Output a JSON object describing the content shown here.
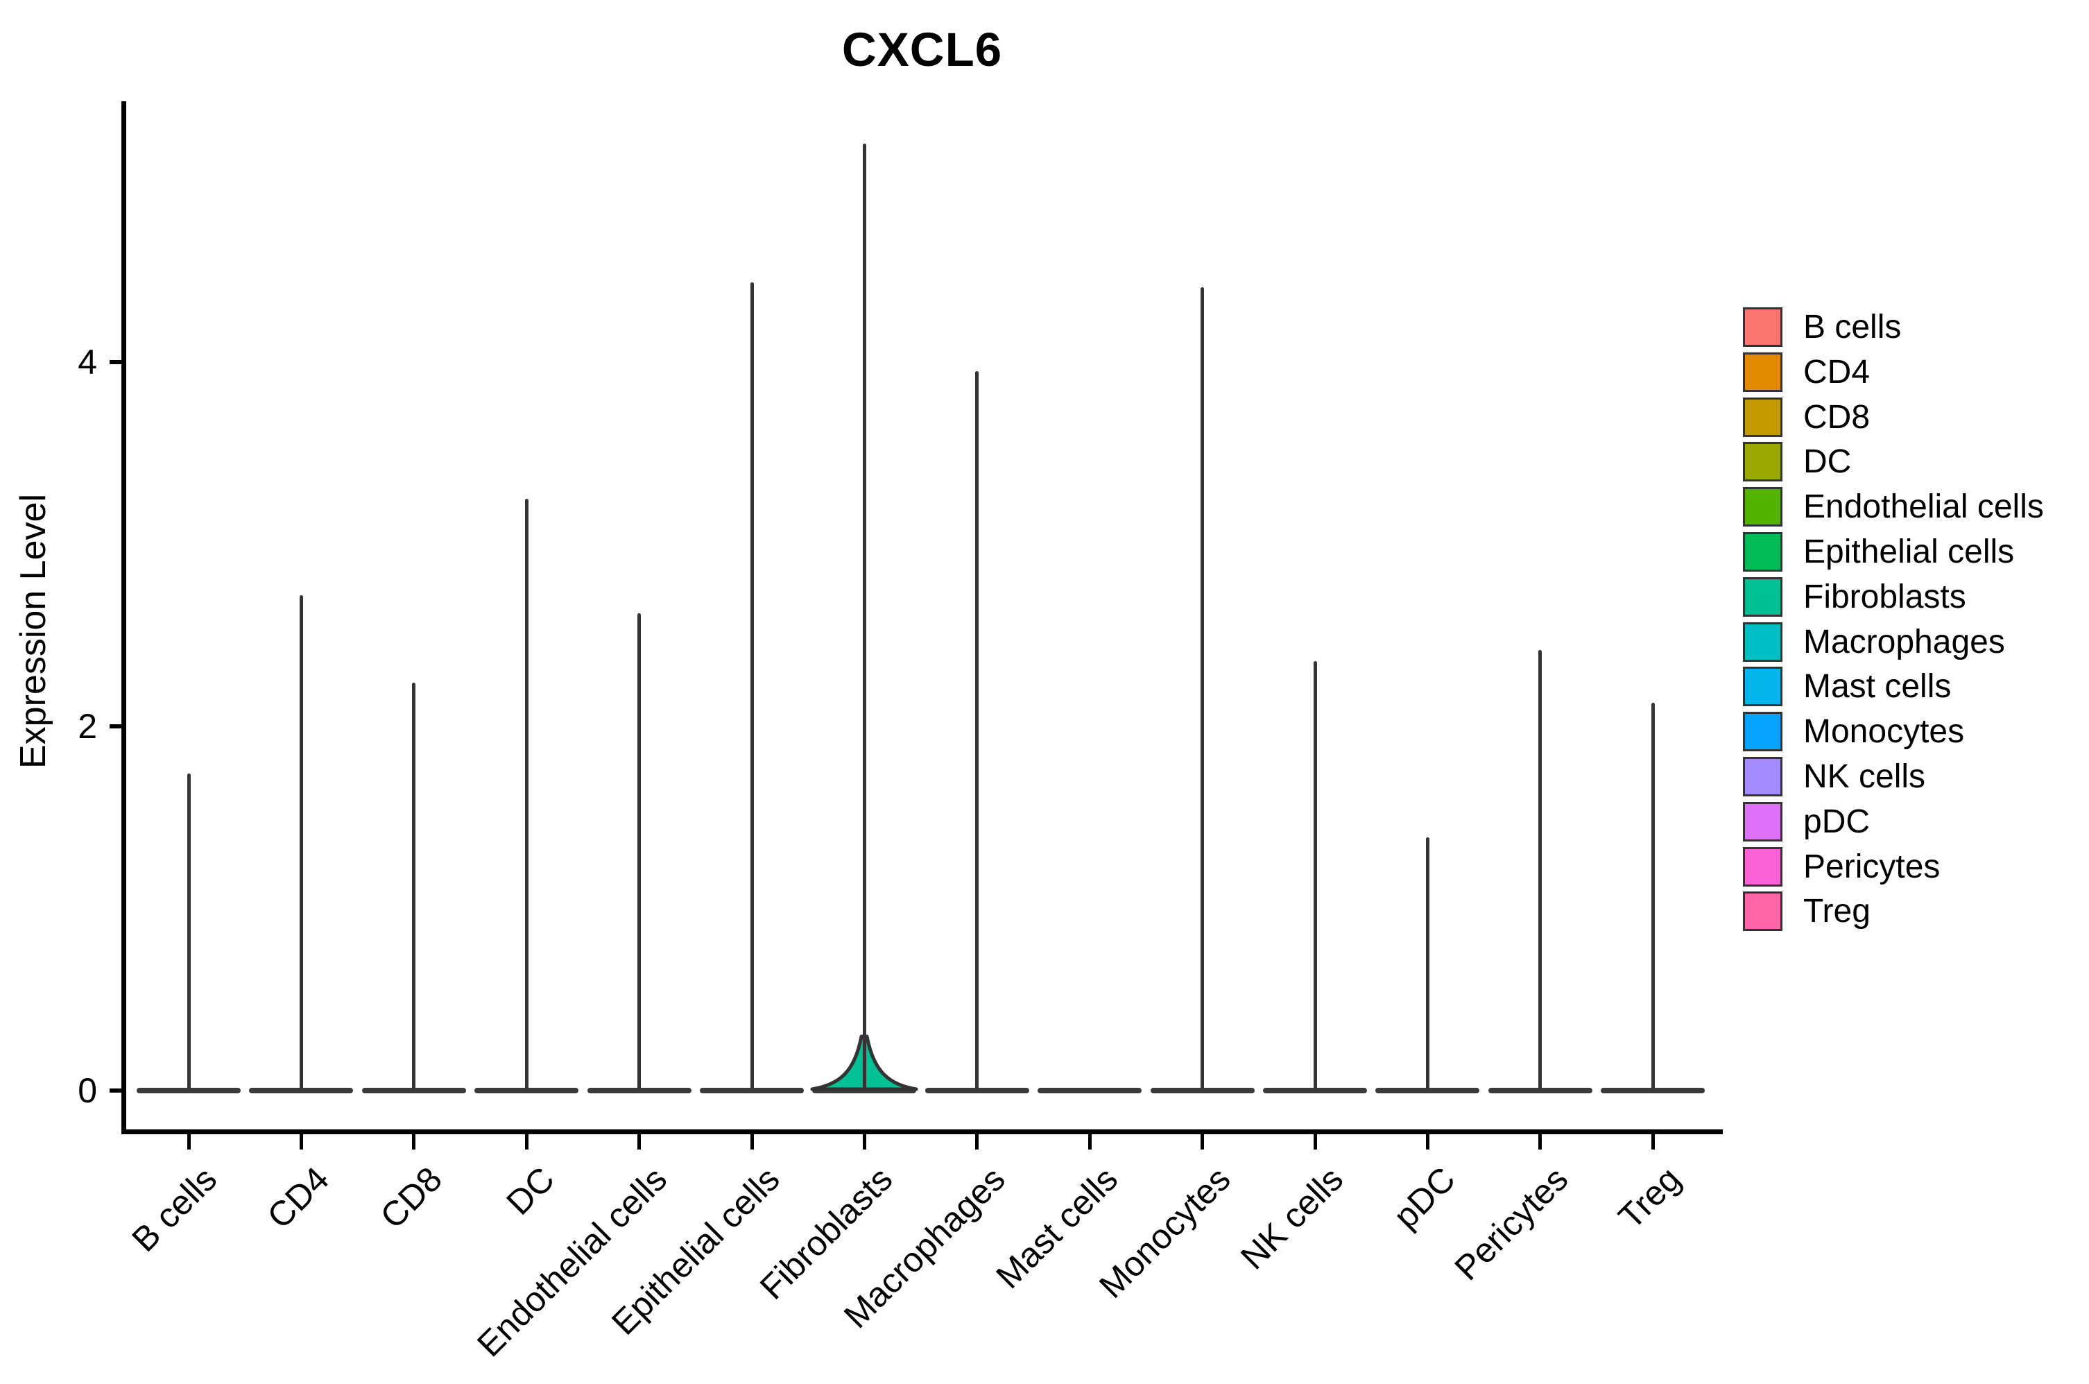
{
  "title": "CXCL6",
  "y_axis": {
    "label": "Expression Level",
    "ticks": [
      0,
      2,
      4
    ]
  },
  "chart_data": {
    "type": "violin",
    "title": "CXCL6",
    "xlabel": "",
    "ylabel": "Expression Level",
    "ylim": [
      -0.2,
      5.45
    ],
    "yticks": [
      0,
      2,
      4
    ],
    "grid": false,
    "legend_position": "right",
    "categories": [
      "B cells",
      "CD4",
      "CD8",
      "DC",
      "Endothelial cells",
      "Epithelial cells",
      "Fibroblasts",
      "Macrophages",
      "Mast cells",
      "Monocytes",
      "NK cells",
      "pDC",
      "Pericytes",
      "Treg"
    ],
    "series": [
      {
        "name": "B cells",
        "color": "#F8766D",
        "max_expression": 1.74,
        "body_height": 0,
        "baseline_violin": true
      },
      {
        "name": "CD4",
        "color": "#E38900",
        "max_expression": 2.72,
        "body_height": 0,
        "baseline_violin": true
      },
      {
        "name": "CD8",
        "color": "#C49A00",
        "max_expression": 2.24,
        "body_height": 0,
        "baseline_violin": true
      },
      {
        "name": "DC",
        "color": "#99A800",
        "max_expression": 3.25,
        "body_height": 0,
        "baseline_violin": true
      },
      {
        "name": "Endothelial cells",
        "color": "#53B400",
        "max_expression": 2.62,
        "body_height": 0,
        "baseline_violin": true
      },
      {
        "name": "Epithelial cells",
        "color": "#00BC56",
        "max_expression": 4.44,
        "body_height": 0,
        "baseline_violin": true
      },
      {
        "name": "Fibroblasts",
        "color": "#00C094",
        "max_expression": 5.2,
        "body_height": 0.31,
        "baseline_violin": true
      },
      {
        "name": "Macrophages",
        "color": "#00BFC4",
        "max_expression": 3.95,
        "body_height": 0,
        "baseline_violin": true
      },
      {
        "name": "Mast cells",
        "color": "#00B6EB",
        "max_expression": 0,
        "body_height": 0,
        "baseline_violin": true
      },
      {
        "name": "Monocytes",
        "color": "#06A4FF",
        "max_expression": 4.41,
        "body_height": 0,
        "baseline_violin": true
      },
      {
        "name": "NK cells",
        "color": "#A58AFF",
        "max_expression": 2.36,
        "body_height": 0,
        "baseline_violin": true
      },
      {
        "name": "pDC",
        "color": "#DF70F8",
        "max_expression": 1.39,
        "body_height": 0,
        "baseline_violin": true
      },
      {
        "name": "Pericytes",
        "color": "#FB61D7",
        "max_expression": 2.42,
        "body_height": 0,
        "baseline_violin": true
      },
      {
        "name": "Treg",
        "color": "#FF66A8",
        "max_expression": 2.13,
        "body_height": 0,
        "baseline_violin": true
      }
    ]
  },
  "legend": {
    "items": [
      {
        "label": "B cells",
        "color": "#F8766D"
      },
      {
        "label": "CD4",
        "color": "#E38900"
      },
      {
        "label": "CD8",
        "color": "#C49A00"
      },
      {
        "label": "DC",
        "color": "#99A800"
      },
      {
        "label": "Endothelial cells",
        "color": "#53B400"
      },
      {
        "label": "Epithelial cells",
        "color": "#00BC56"
      },
      {
        "label": "Fibroblasts",
        "color": "#00C094"
      },
      {
        "label": "Macrophages",
        "color": "#00BFC4"
      },
      {
        "label": "Mast cells",
        "color": "#00B6EB"
      },
      {
        "label": "Monocytes",
        "color": "#06A4FF"
      },
      {
        "label": "NK cells",
        "color": "#A58AFF"
      },
      {
        "label": "pDC",
        "color": "#DF70F8"
      },
      {
        "label": "Pericytes",
        "color": "#FB61D7"
      },
      {
        "label": "Treg",
        "color": "#FF66A8"
      }
    ]
  }
}
